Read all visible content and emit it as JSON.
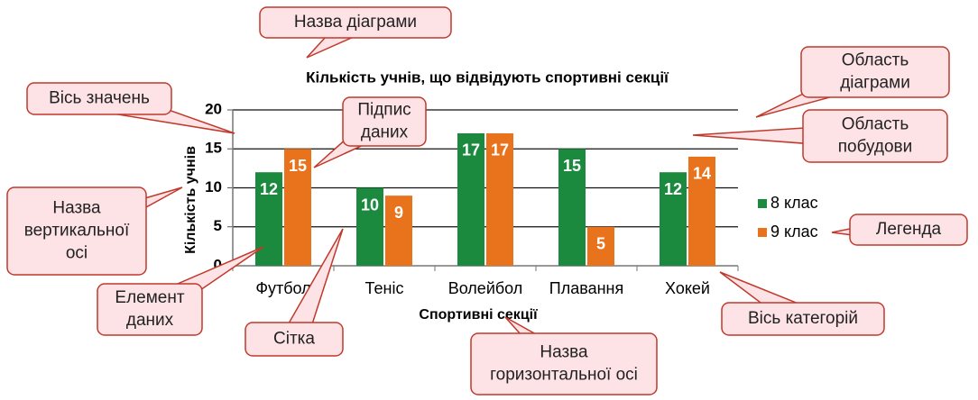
{
  "chart_data": {
    "type": "bar",
    "title": "Кількість учнів, що відвідують спортивні секції",
    "x_label": "Спортивні секції",
    "y_label": "Кількість учнів",
    "categories": [
      "Футбол",
      "Теніс",
      "Волейбол",
      "Плавання",
      "Хокей"
    ],
    "series": [
      {
        "name": "8 клас",
        "color": "#1b8a3e",
        "values": [
          12,
          10,
          17,
          15,
          12
        ]
      },
      {
        "name": "9 клас",
        "color": "#e8731c",
        "values": [
          15,
          9,
          17,
          5,
          14
        ]
      }
    ],
    "ylim": [
      0,
      20
    ],
    "yticks": [
      0,
      5,
      10,
      15,
      20
    ],
    "grid": true,
    "legend": "right"
  },
  "callouts": [
    [
      "Назва діаграми"
    ],
    [
      "Область",
      "діаграми"
    ],
    [
      "Вісь значень"
    ],
    [
      "Підпис",
      "даних"
    ],
    [
      "Область",
      "побудови"
    ],
    [
      "Назва",
      "вертикальної",
      "осі"
    ],
    [
      "Легенда"
    ],
    [
      "Елемент",
      "даних"
    ],
    [
      "Сітка"
    ],
    [
      "Назва",
      "горизонтальної осі"
    ],
    [
      "Вісь категорій"
    ]
  ]
}
